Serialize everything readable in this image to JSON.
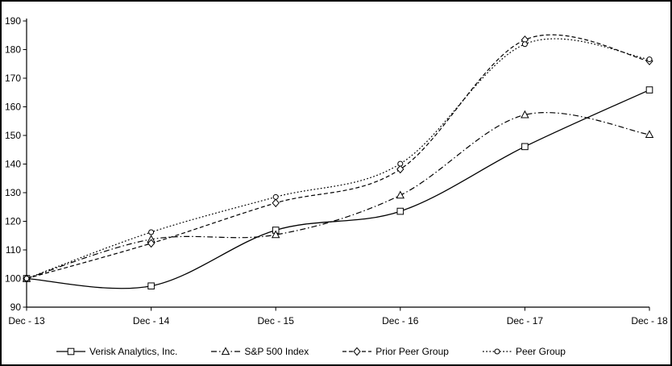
{
  "chart_data": {
    "type": "line",
    "title": "",
    "xlabel": "",
    "ylabel": "",
    "x_labels": [
      "Dec - 13",
      "Dec - 14",
      "Dec - 15",
      "Dec - 16",
      "Dec - 17",
      "Dec - 18"
    ],
    "y_ticks": [
      90,
      100,
      110,
      120,
      130,
      140,
      150,
      160,
      170,
      180,
      190
    ],
    "ylim": [
      90,
      190
    ],
    "grid": false,
    "smoothed": true,
    "legend_position": "bottom",
    "axis_color": "#000000",
    "background_color": "#ffffff",
    "series": [
      {
        "name": "Verisk Analytics, Inc.",
        "marker": "square",
        "line_style": "solid",
        "color": "#000000",
        "values": [
          100,
          97.4,
          116.9,
          123.5,
          146.1,
          165.9
        ]
      },
      {
        "name": "S&P 500 Index",
        "marker": "triangle",
        "line_style": "dash-dot",
        "color": "#000000",
        "values": [
          100,
          113.7,
          115.3,
          129.1,
          157.2,
          150.3
        ]
      },
      {
        "name": "Prior Peer Group",
        "marker": "diamond",
        "line_style": "dashed",
        "color": "#000000",
        "values": [
          100,
          112.3,
          126.4,
          138.2,
          183.4,
          176.0
        ]
      },
      {
        "name": "Peer Group",
        "marker": "circle",
        "line_style": "dotted",
        "color": "#000000",
        "values": [
          100,
          116.2,
          128.5,
          140.1,
          181.9,
          176.6
        ]
      }
    ]
  }
}
